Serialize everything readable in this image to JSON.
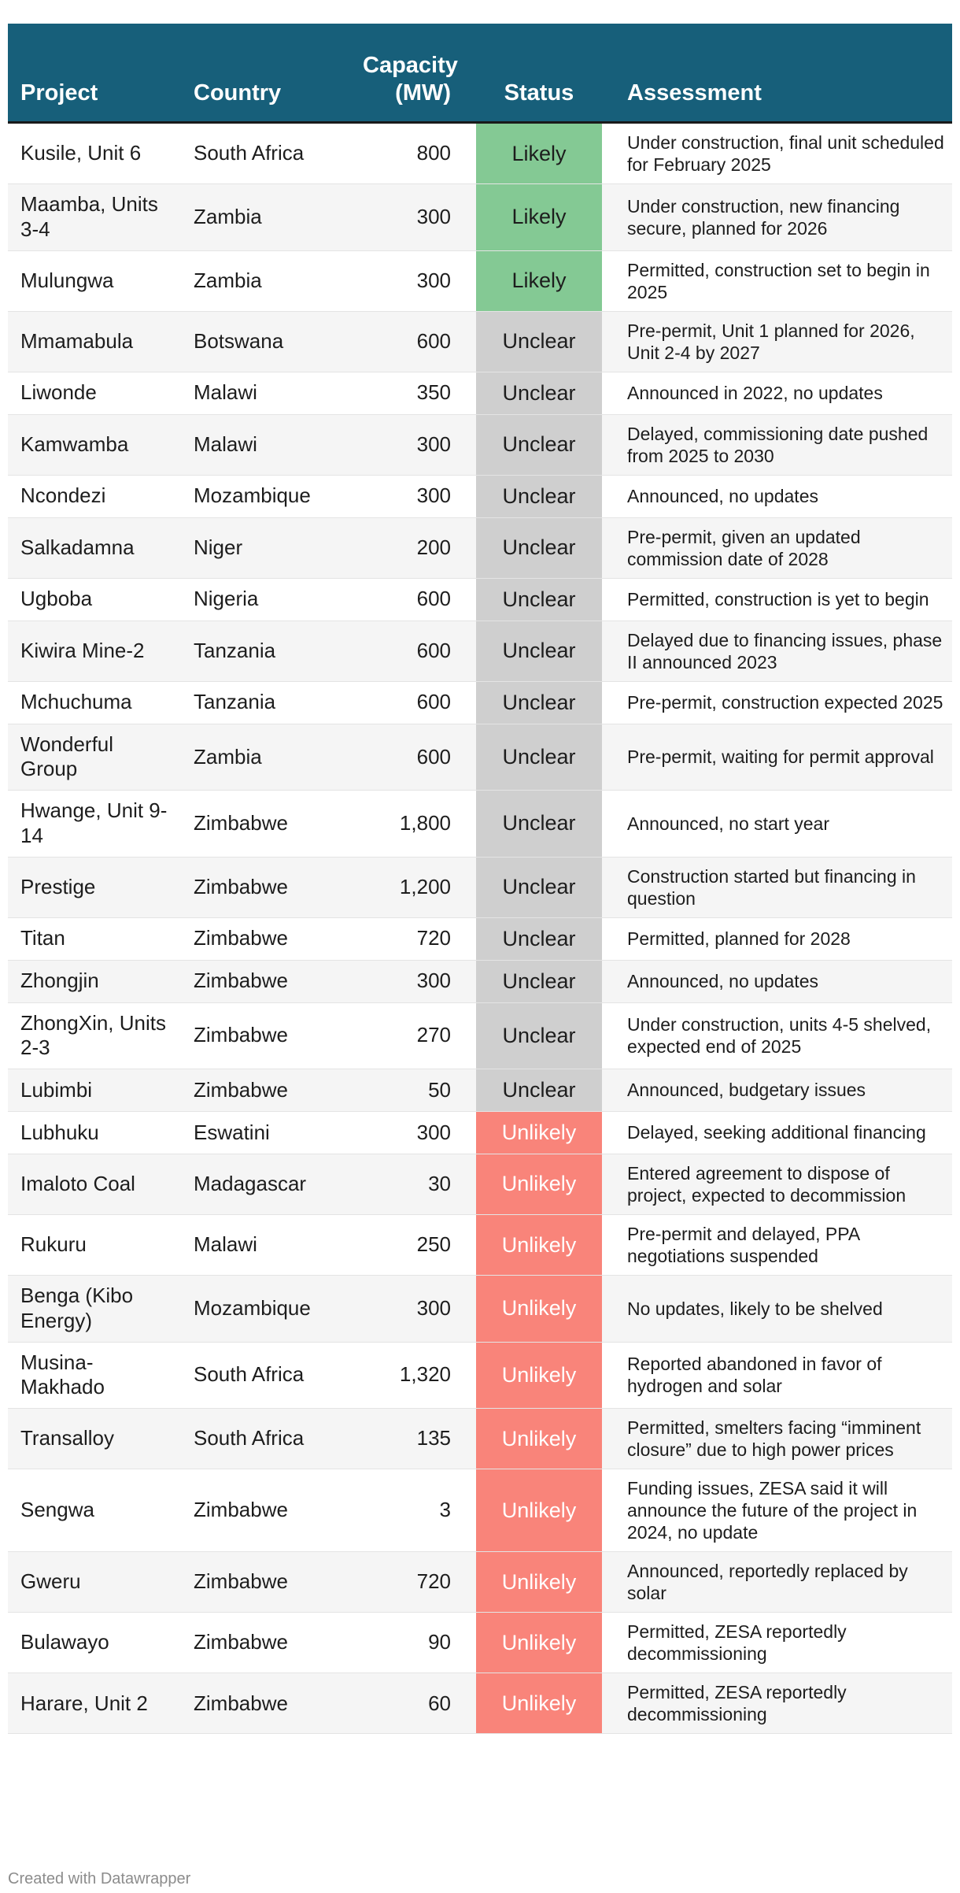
{
  "chart_data": {
    "type": "table",
    "columns": {
      "project": "Project",
      "country": "Country",
      "capacity": "Capacity (MW)",
      "status": "Status",
      "assessment": "Assessment"
    },
    "status_colors": {
      "Likely": "#84c994",
      "Unclear": "#cfcfcf",
      "Unlikely": "#f9847a"
    },
    "header_color": "#175f7a",
    "rows": [
      {
        "project": "Kusile, Unit 6",
        "country": "South Africa",
        "capacity": "800",
        "status": "Likely",
        "assessment": "Under construction, final unit scheduled for February 2025"
      },
      {
        "project": "Maamba, Units 3-4",
        "country": "Zambia",
        "capacity": "300",
        "status": "Likely",
        "assessment": "Under construction, new financing secure, planned for 2026"
      },
      {
        "project": "Mulungwa",
        "country": "Zambia",
        "capacity": "300",
        "status": "Likely",
        "assessment": "Permitted, construction set to begin in 2025"
      },
      {
        "project": "Mmamabula",
        "country": "Botswana",
        "capacity": "600",
        "status": "Unclear",
        "assessment": "Pre-permit, Unit 1 planned for 2026, Unit 2-4 by 2027"
      },
      {
        "project": "Liwonde",
        "country": "Malawi",
        "capacity": "350",
        "status": "Unclear",
        "assessment": "Announced in 2022, no updates"
      },
      {
        "project": "Kamwamba",
        "country": "Malawi",
        "capacity": "300",
        "status": "Unclear",
        "assessment": "Delayed, commissioning date pushed from 2025 to 2030"
      },
      {
        "project": "Ncondezi",
        "country": "Mozambique",
        "capacity": "300",
        "status": "Unclear",
        "assessment": "Announced, no updates"
      },
      {
        "project": "Salkadamna",
        "country": "Niger",
        "capacity": "200",
        "status": "Unclear",
        "assessment": "Pre-permit, given an updated commission date of 2028"
      },
      {
        "project": "Ugboba",
        "country": "Nigeria",
        "capacity": "600",
        "status": "Unclear",
        "assessment": "Permitted, construction is yet to begin"
      },
      {
        "project": "Kiwira Mine-2",
        "country": "Tanzania",
        "capacity": "600",
        "status": "Unclear",
        "assessment": "Delayed due to financing issues, phase II announced 2023"
      },
      {
        "project": "Mchuchuma",
        "country": "Tanzania",
        "capacity": "600",
        "status": "Unclear",
        "assessment": "Pre-permit, construction expected 2025"
      },
      {
        "project": "Wonderful Group",
        "country": "Zambia",
        "capacity": "600",
        "status": "Unclear",
        "assessment": "Pre-permit, waiting for permit approval"
      },
      {
        "project": "Hwange, Unit 9-14",
        "country": "Zimbabwe",
        "capacity": "1,800",
        "status": "Unclear",
        "assessment": "Announced, no start year"
      },
      {
        "project": "Prestige",
        "country": "Zimbabwe",
        "capacity": "1,200",
        "status": "Unclear",
        "assessment": "Construction started but financing in question"
      },
      {
        "project": "Titan",
        "country": "Zimbabwe",
        "capacity": "720",
        "status": "Unclear",
        "assessment": "Permitted, planned for 2028"
      },
      {
        "project": "Zhongjin",
        "country": "Zimbabwe",
        "capacity": "300",
        "status": "Unclear",
        "assessment": "Announced, no updates"
      },
      {
        "project": "ZhongXin, Units 2-3",
        "country": "Zimbabwe",
        "capacity": "270",
        "status": "Unclear",
        "assessment": "Under construction, units 4-5 shelved, expected end of 2025"
      },
      {
        "project": "Lubimbi",
        "country": "Zimbabwe",
        "capacity": "50",
        "status": "Unclear",
        "assessment": "Announced, budgetary issues"
      },
      {
        "project": "Lubhuku",
        "country": "Eswatini",
        "capacity": "300",
        "status": "Unlikely",
        "assessment": "Delayed, seeking additional financing"
      },
      {
        "project": "Imaloto Coal",
        "country": "Madagascar",
        "capacity": "30",
        "status": "Unlikely",
        "assessment": "Entered agreement to dispose of project, expected to decommission"
      },
      {
        "project": "Rukuru",
        "country": "Malawi",
        "capacity": "250",
        "status": "Unlikely",
        "assessment": "Pre-permit and delayed, PPA negotiations suspended"
      },
      {
        "project": "Benga (Kibo Energy)",
        "country": "Mozambique",
        "capacity": "300",
        "status": "Unlikely",
        "assessment": "No updates, likely to be shelved"
      },
      {
        "project": "Musina-Makhado",
        "country": "South Africa",
        "capacity": "1,320",
        "status": "Unlikely",
        "assessment": "Reported abandoned in favor of hydrogen and solar"
      },
      {
        "project": "Transalloy",
        "country": "South Africa",
        "capacity": "135",
        "status": "Unlikely",
        "assessment": "Permitted, smelters facing “imminent closure” due to high power prices"
      },
      {
        "project": "Sengwa",
        "country": "Zimbabwe",
        "capacity": "3",
        "status": "Unlikely",
        "assessment": "Funding issues, ZESA said it will announce the future of the project in 2024, no update"
      },
      {
        "project": "Gweru",
        "country": "Zimbabwe",
        "capacity": "720",
        "status": "Unlikely",
        "assessment": "Announced, reportedly replaced by solar"
      },
      {
        "project": "Bulawayo",
        "country": "Zimbabwe",
        "capacity": "90",
        "status": "Unlikely",
        "assessment": "Permitted, ZESA reportedly decommissioning"
      },
      {
        "project": "Harare, Unit 2",
        "country": "Zimbabwe",
        "capacity": "60",
        "status": "Unlikely",
        "assessment": "Permitted, ZESA reportedly decommissioning"
      }
    ]
  },
  "footer": {
    "credit": "Created with Datawrapper"
  }
}
